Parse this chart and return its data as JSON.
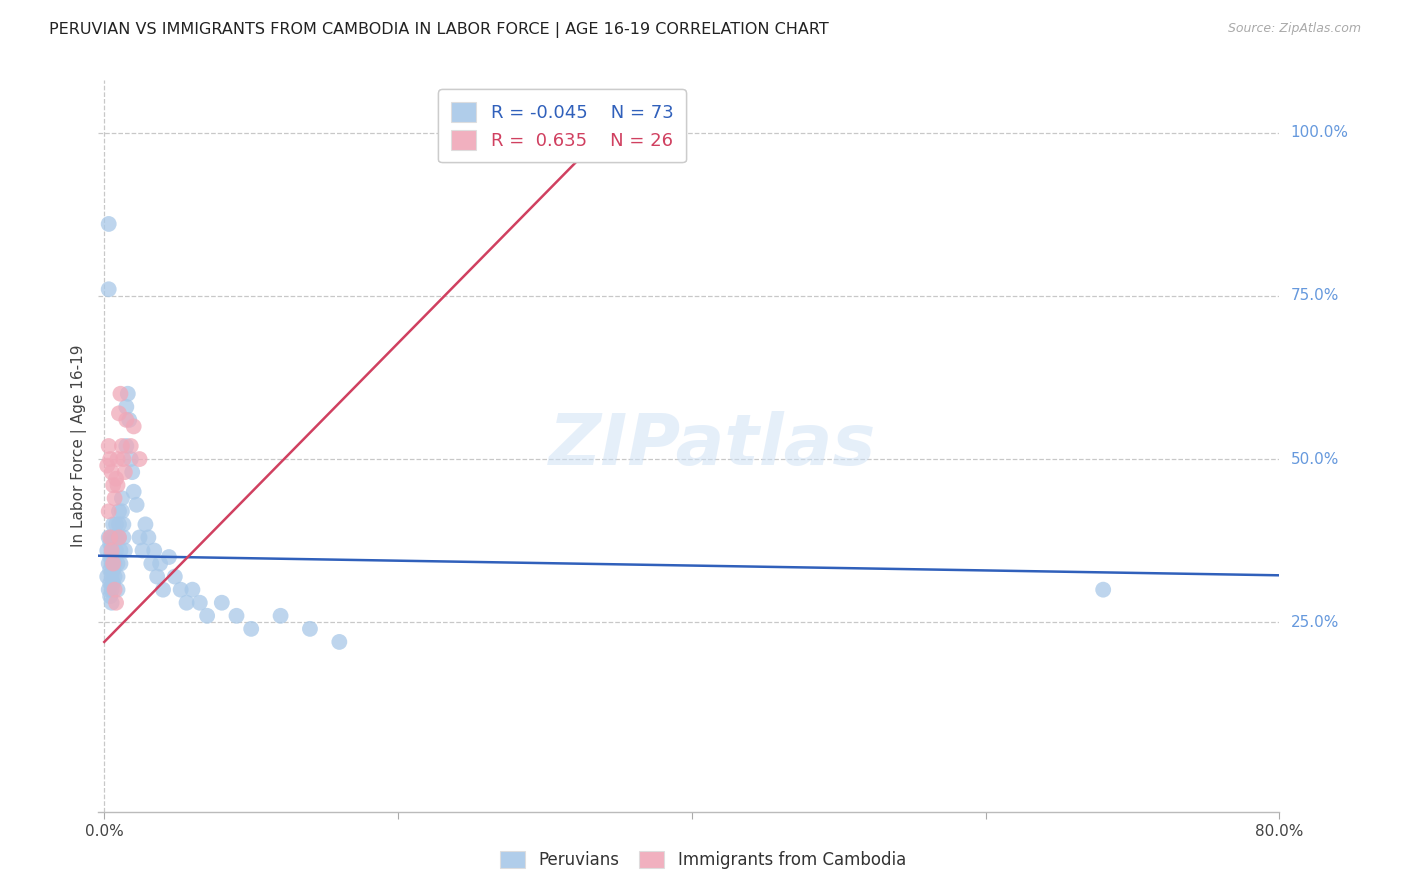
{
  "title": "PERUVIAN VS IMMIGRANTS FROM CAMBODIA IN LABOR FORCE | AGE 16-19 CORRELATION CHART",
  "source": "Source: ZipAtlas.com",
  "ylabel": "In Labor Force | Age 16-19",
  "xlim": [
    -0.004,
    0.8
  ],
  "ylim": [
    -0.04,
    1.08
  ],
  "legend_blue_R": "-0.045",
  "legend_blue_N": "73",
  "legend_pink_R": "0.635",
  "legend_pink_N": "26",
  "legend_label_blue": "Peruvians",
  "legend_label_pink": "Immigrants from Cambodia",
  "watermark_text": "ZIPatlas",
  "blue_color": "#a8c8e8",
  "pink_color": "#f0a8b8",
  "trend_blue_color": "#3060bb",
  "trend_pink_color": "#d04060",
  "blue_points_x": [
    0.002,
    0.002,
    0.003,
    0.003,
    0.003,
    0.004,
    0.004,
    0.004,
    0.004,
    0.004,
    0.005,
    0.005,
    0.005,
    0.005,
    0.005,
    0.005,
    0.006,
    0.006,
    0.006,
    0.006,
    0.007,
    0.007,
    0.007,
    0.007,
    0.008,
    0.008,
    0.008,
    0.009,
    0.009,
    0.009,
    0.01,
    0.01,
    0.01,
    0.011,
    0.011,
    0.012,
    0.012,
    0.013,
    0.013,
    0.014,
    0.015,
    0.015,
    0.016,
    0.017,
    0.018,
    0.019,
    0.02,
    0.022,
    0.024,
    0.026,
    0.028,
    0.03,
    0.032,
    0.034,
    0.036,
    0.038,
    0.04,
    0.044,
    0.048,
    0.052,
    0.056,
    0.06,
    0.065,
    0.07,
    0.08,
    0.09,
    0.1,
    0.12,
    0.14,
    0.16,
    0.003,
    0.003,
    0.68
  ],
  "blue_points_y": [
    0.36,
    0.32,
    0.34,
    0.3,
    0.38,
    0.35,
    0.33,
    0.31,
    0.29,
    0.37,
    0.36,
    0.34,
    0.32,
    0.3,
    0.28,
    0.38,
    0.35,
    0.33,
    0.31,
    0.4,
    0.38,
    0.36,
    0.34,
    0.32,
    0.4,
    0.38,
    0.36,
    0.34,
    0.32,
    0.3,
    0.42,
    0.4,
    0.38,
    0.36,
    0.34,
    0.44,
    0.42,
    0.4,
    0.38,
    0.36,
    0.52,
    0.58,
    0.6,
    0.56,
    0.5,
    0.48,
    0.45,
    0.43,
    0.38,
    0.36,
    0.4,
    0.38,
    0.34,
    0.36,
    0.32,
    0.34,
    0.3,
    0.35,
    0.32,
    0.3,
    0.28,
    0.3,
    0.28,
    0.26,
    0.28,
    0.26,
    0.24,
    0.26,
    0.24,
    0.22,
    0.86,
    0.76,
    0.3
  ],
  "pink_points_x": [
    0.002,
    0.003,
    0.003,
    0.004,
    0.004,
    0.005,
    0.005,
    0.006,
    0.006,
    0.007,
    0.007,
    0.008,
    0.008,
    0.009,
    0.009,
    0.01,
    0.01,
    0.011,
    0.012,
    0.013,
    0.014,
    0.015,
    0.018,
    0.02,
    0.024,
    0.33
  ],
  "pink_points_y": [
    0.49,
    0.52,
    0.42,
    0.5,
    0.38,
    0.48,
    0.36,
    0.46,
    0.34,
    0.44,
    0.3,
    0.47,
    0.28,
    0.5,
    0.46,
    0.57,
    0.38,
    0.6,
    0.52,
    0.5,
    0.48,
    0.56,
    0.52,
    0.55,
    0.5,
    0.975
  ],
  "blue_trend_x": [
    -0.004,
    0.8
  ],
  "blue_trend_y": [
    0.352,
    0.322
  ],
  "pink_trend_x": [
    0.0,
    0.33
  ],
  "pink_trend_y": [
    0.22,
    0.975
  ],
  "ytick_positions": [
    0.25,
    0.5,
    0.75,
    1.0
  ],
  "ytick_labels": [
    "25.0%",
    "50.0%",
    "75.0%",
    "100.0%"
  ],
  "xtick_positions": [
    0.0,
    0.2,
    0.4,
    0.6,
    0.8
  ],
  "xtick_labels_show": [
    "0.0%",
    "",
    "",
    "",
    "80.0%"
  ]
}
